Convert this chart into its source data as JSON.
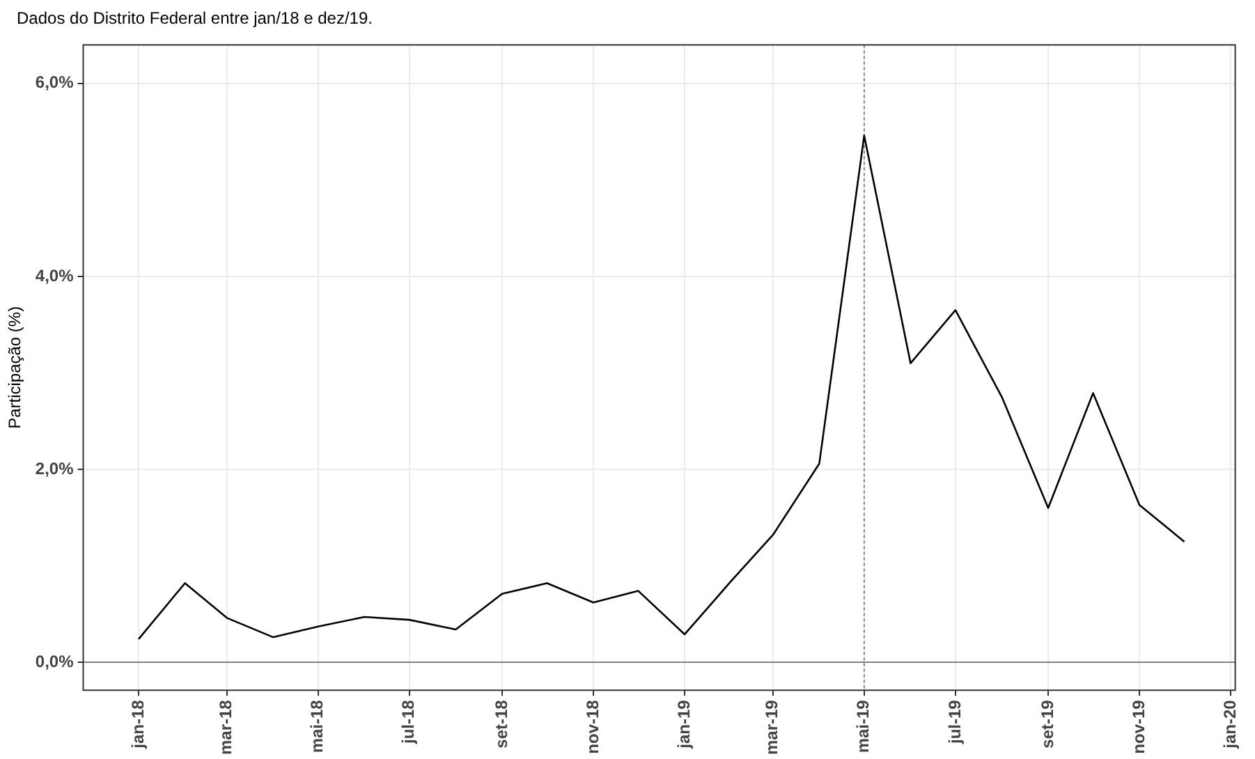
{
  "chart_data": {
    "type": "line",
    "title": "Dados do Distrito Federal entre jan/18 e dez/19.",
    "ylabel": "Participação (%)",
    "x": [
      "2018-01",
      "2018-02",
      "2018-03",
      "2018-04",
      "2018-05",
      "2018-06",
      "2018-07",
      "2018-08",
      "2018-09",
      "2018-10",
      "2018-11",
      "2018-12",
      "2019-01",
      "2019-02",
      "2019-03",
      "2019-04",
      "2019-05",
      "2019-06",
      "2019-07",
      "2019-08",
      "2019-09",
      "2019-10",
      "2019-11",
      "2019-12"
    ],
    "series": [
      {
        "color": "#000000",
        "values": [
          0.24,
          0.82,
          0.46,
          0.26,
          0.37,
          0.47,
          0.44,
          0.34,
          0.71,
          0.82,
          0.62,
          0.74,
          0.29,
          0.84,
          1.32,
          2.06,
          5.46,
          3.1,
          3.65,
          2.75,
          1.6,
          2.79,
          1.63,
          1.25
        ]
      }
    ],
    "xlim": [
      "2017-11-25",
      "2020-01-04"
    ],
    "xticks": [
      {
        "value": "2018-01",
        "label": "jan-18"
      },
      {
        "value": "2018-03",
        "label": "mar-18"
      },
      {
        "value": "2018-05",
        "label": "mai-18"
      },
      {
        "value": "2018-07",
        "label": "jul-18"
      },
      {
        "value": "2018-09",
        "label": "set-18"
      },
      {
        "value": "2018-11",
        "label": "nov-18"
      },
      {
        "value": "2019-01",
        "label": "jan-19"
      },
      {
        "value": "2019-03",
        "label": "mar-19"
      },
      {
        "value": "2019-05",
        "label": "mai-19"
      },
      {
        "value": "2019-07",
        "label": "jul-19"
      },
      {
        "value": "2019-09",
        "label": "set-19"
      },
      {
        "value": "2019-11",
        "label": "nov-19"
      },
      {
        "value": "2020-01",
        "label": "jan-20"
      }
    ],
    "ylim": [
      -0.29,
      6.4
    ],
    "yticks": [
      {
        "value": 0,
        "label": "0,0%"
      },
      {
        "value": 2,
        "label": "2,0%"
      },
      {
        "value": 4,
        "label": "4,0%"
      },
      {
        "value": 6,
        "label": "6,0%"
      }
    ],
    "grid": true,
    "legend": false,
    "marker": "none",
    "line_style": "solid",
    "ref_lines": [
      {
        "axis": "x",
        "value": "2019-05",
        "color": "#808080",
        "line_style": "dotted"
      },
      {
        "axis": "y",
        "value": 0,
        "color": "#808080",
        "line_style": "solid"
      }
    ]
  }
}
